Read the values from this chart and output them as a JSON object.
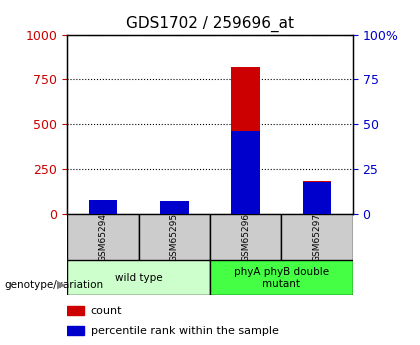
{
  "title": "GDS1702 / 259696_at",
  "categories": [
    "GSM65294",
    "GSM65295",
    "GSM65296",
    "GSM65297"
  ],
  "red_values": [
    25,
    30,
    820,
    185
  ],
  "blue_values": [
    8,
    7,
    46,
    18
  ],
  "ylim_left": [
    0,
    1000
  ],
  "ylim_right": [
    0,
    100
  ],
  "left_ticks": [
    0,
    250,
    500,
    750,
    1000
  ],
  "right_ticks": [
    0,
    25,
    50,
    75,
    100
  ],
  "left_color": "#cc0000",
  "right_color": "#0000cc",
  "groups": [
    {
      "label": "wild type",
      "indices": [
        0,
        1
      ],
      "color": "#ccffcc"
    },
    {
      "label": "phyA phyB double\nmutant",
      "indices": [
        2,
        3
      ],
      "color": "#44ff44"
    }
  ],
  "legend_items": [
    {
      "label": "count",
      "color": "#cc0000"
    },
    {
      "label": "percentile rank within the sample",
      "color": "#0000cc"
    }
  ],
  "genotype_label": "genotype/variation",
  "cell_bg_color": "#cccccc",
  "title_fontsize": 11,
  "tick_fontsize": 9,
  "legend_fontsize": 8
}
